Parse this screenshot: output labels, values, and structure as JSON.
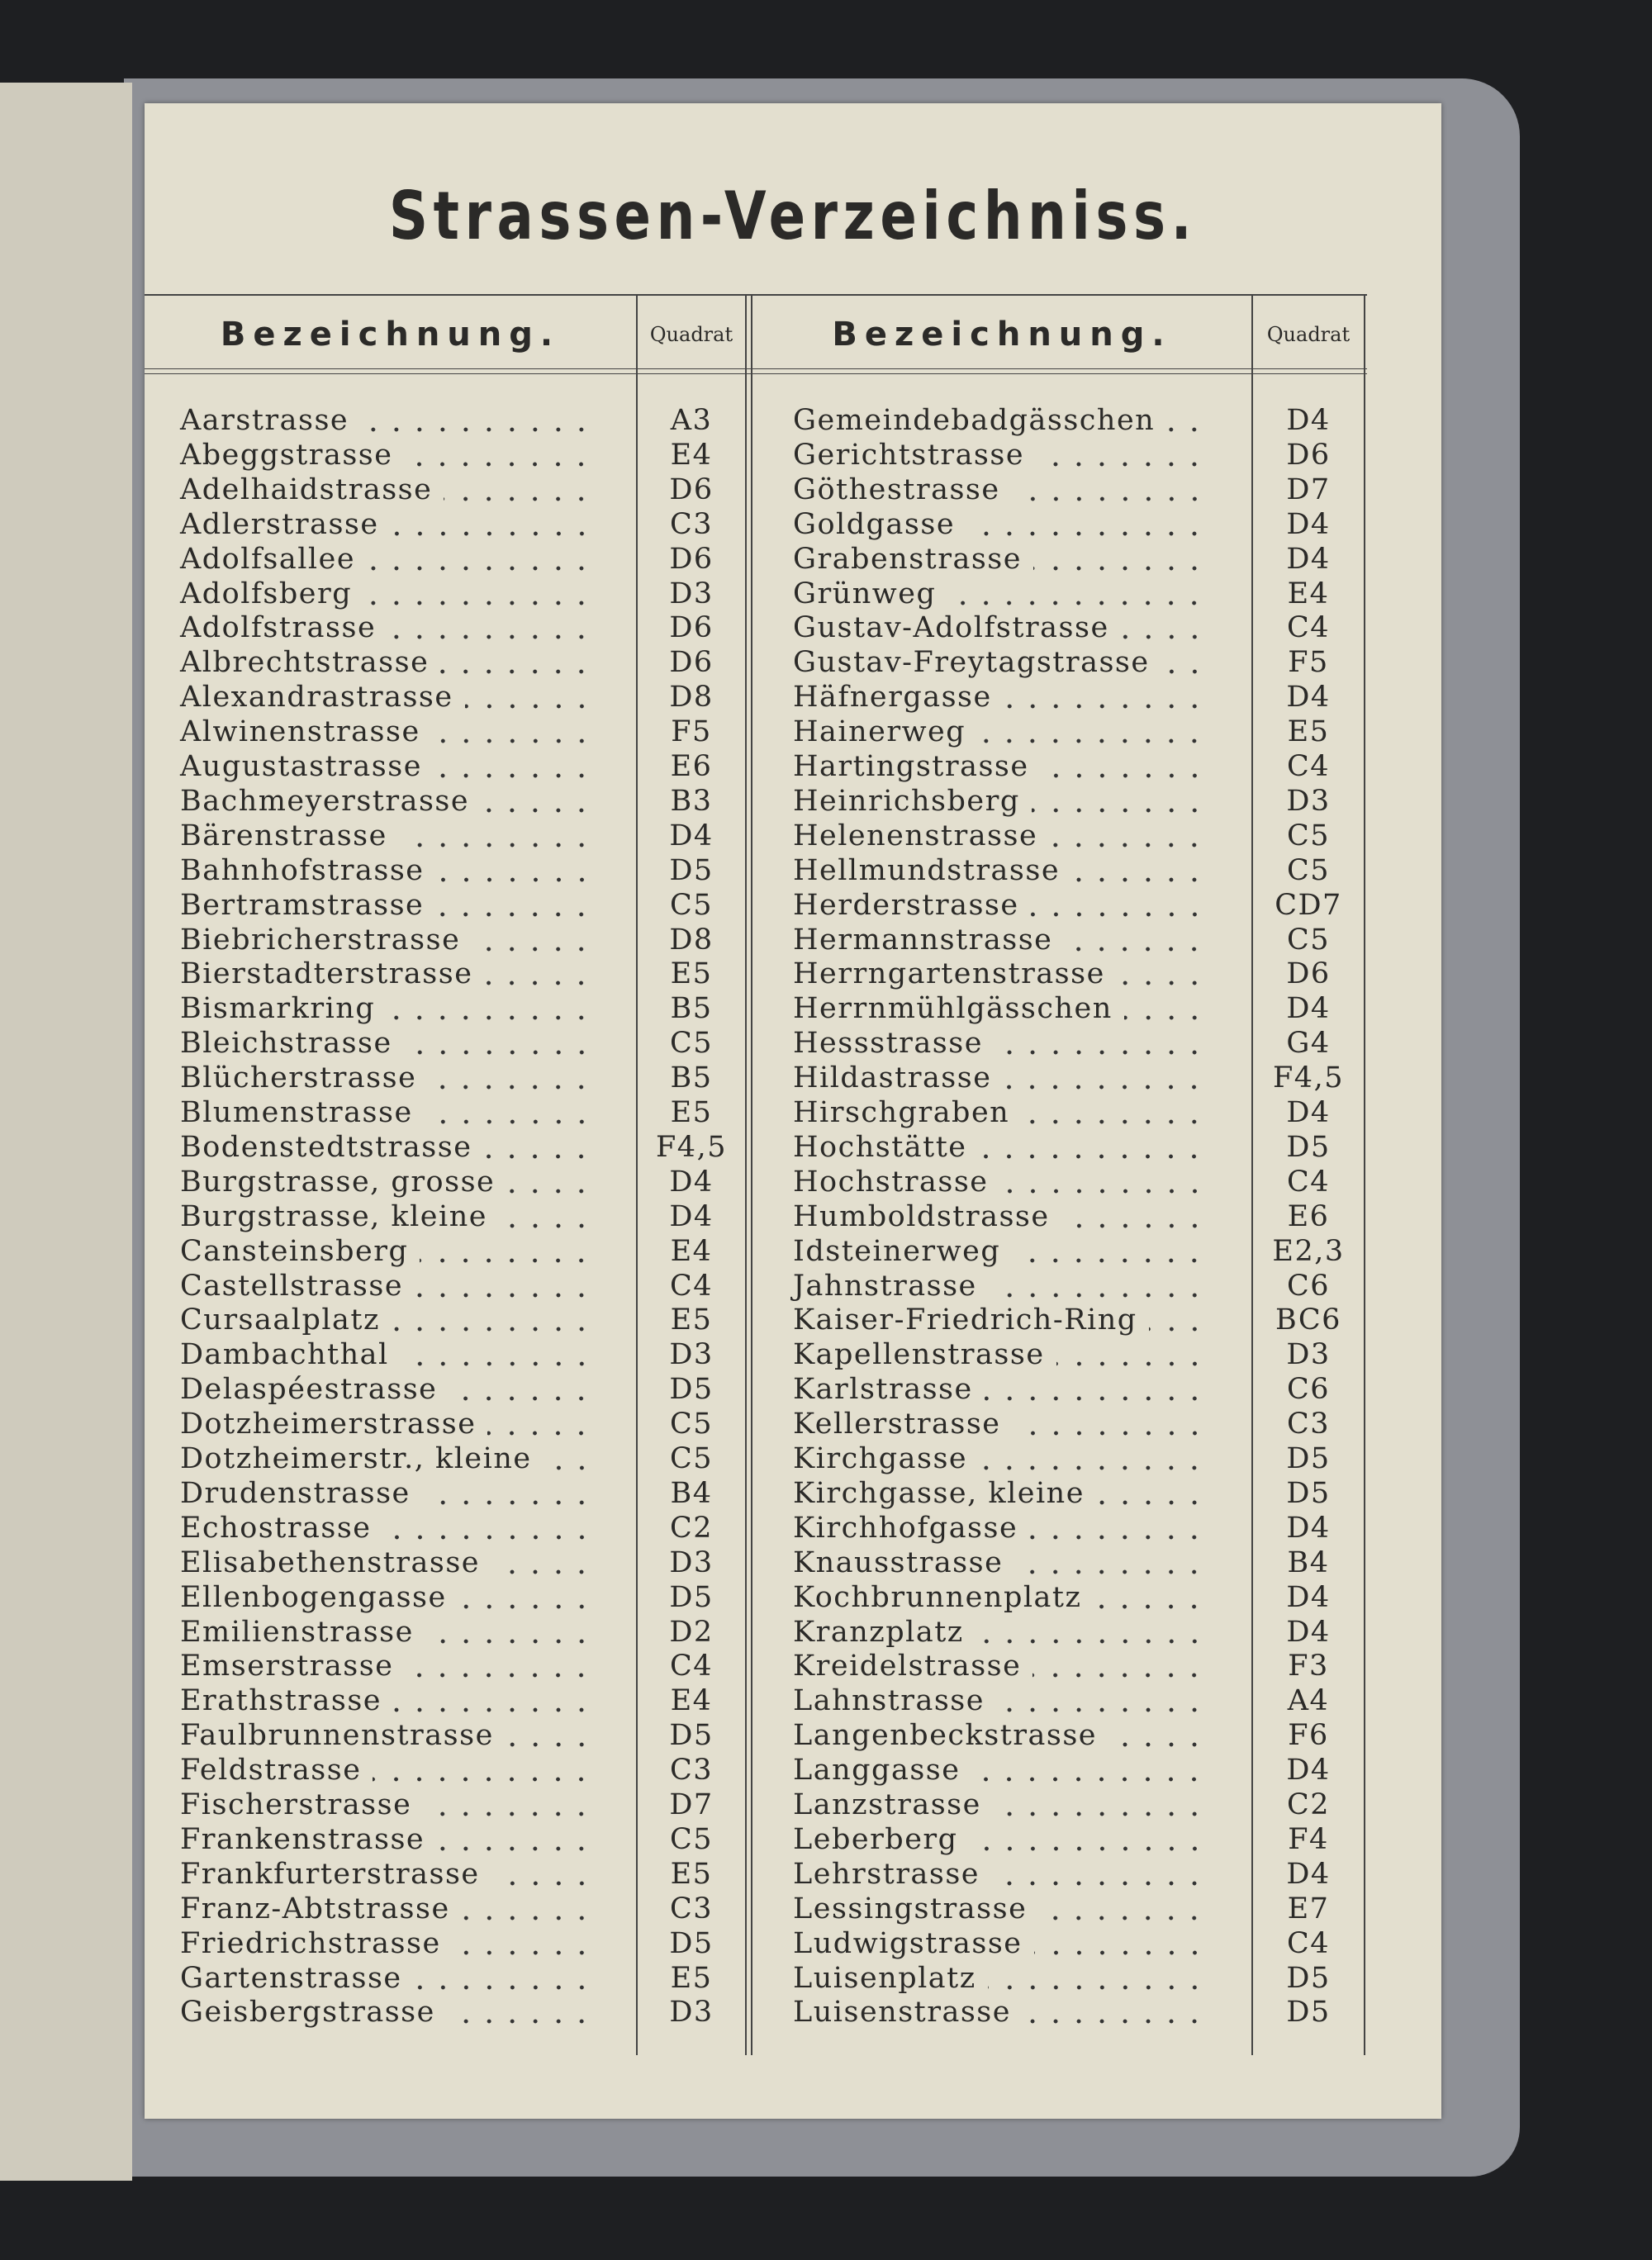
{
  "header": {
    "title": "Strassen-Verzeichniss."
  },
  "table": {
    "columns": [
      "Bezeichnung.",
      "Quadrat",
      "Bezeichnung.",
      "Quadrat"
    ],
    "left": {
      "rows": [
        [
          "Aarstrasse",
          "A3"
        ],
        [
          "Abeggstrasse",
          "E4"
        ],
        [
          "Adelhaidstrasse",
          "D6"
        ],
        [
          "Adlerstrasse",
          "C3"
        ],
        [
          "Adolfsallee",
          "D6"
        ],
        [
          "Adolfsberg",
          "D3"
        ],
        [
          "Adolfstrasse",
          "D6"
        ],
        [
          "Albrechtstrasse",
          "D6"
        ],
        [
          "Alexandrastrasse",
          "D8"
        ],
        [
          "Alwinenstrasse",
          "F5"
        ],
        [
          "Augustastrasse",
          "E6"
        ],
        [
          "Bachmeyerstrasse",
          "B3"
        ],
        [
          "Bärenstrasse",
          "D4"
        ],
        [
          "Bahnhofstrasse",
          "D5"
        ],
        [
          "Bertramstrasse",
          "C5"
        ],
        [
          "Biebricherstrasse",
          "D8"
        ],
        [
          "Bierstadterstrasse",
          "E5"
        ],
        [
          "Bismarkring",
          "B5"
        ],
        [
          "Bleichstrasse",
          "C5"
        ],
        [
          "Blücherstrasse",
          "B5"
        ],
        [
          "Blumenstrasse",
          "E5"
        ],
        [
          "Bodenstedtstrasse",
          "F4,5"
        ],
        [
          "Burgstrasse, grosse",
          "D4"
        ],
        [
          "Burgstrasse, kleine",
          "D4"
        ],
        [
          "Cansteinsberg",
          "E4"
        ],
        [
          "Castellstrasse",
          "C4"
        ],
        [
          "Cursaalplatz",
          "E5"
        ],
        [
          "Dambachthal",
          "D3"
        ],
        [
          "Delaspéestrasse",
          "D5"
        ],
        [
          "Dotzheimerstrasse",
          "C5"
        ],
        [
          "Dotzheimerstr., kleine",
          "C5"
        ],
        [
          "Drudenstrasse",
          "B4"
        ],
        [
          "Echostrasse",
          "C2"
        ],
        [
          "Elisabethenstrasse",
          "D3"
        ],
        [
          "Ellenbogengasse",
          "D5"
        ],
        [
          "Emilienstrasse",
          "D2"
        ],
        [
          "Emserstrasse",
          "C4"
        ],
        [
          "Erathstrasse",
          "E4"
        ],
        [
          "Faulbrunnenstrasse",
          "D5"
        ],
        [
          "Feldstrasse",
          "C3"
        ],
        [
          "Fischerstrasse",
          "D7"
        ],
        [
          "Frankenstrasse",
          "C5"
        ],
        [
          "Frankfurterstrasse",
          "E5"
        ],
        [
          "Franz-Abtstrasse",
          "C3"
        ],
        [
          "Friedrichstrasse",
          "D5"
        ],
        [
          "Gartenstrasse",
          "E5"
        ],
        [
          "Geisbergstrasse",
          "D3"
        ]
      ]
    },
    "right": {
      "rows": [
        [
          "Gemeindebadgässchen",
          "D4"
        ],
        [
          "Gerichtstrasse",
          "D6"
        ],
        [
          "Göthestrasse",
          "D7"
        ],
        [
          "Goldgasse",
          "D4"
        ],
        [
          "Grabenstrasse",
          "D4"
        ],
        [
          "Grünweg",
          "E4"
        ],
        [
          "Gustav-Adolfstrasse",
          "C4"
        ],
        [
          "Gustav-Freytagstrasse",
          "F5"
        ],
        [
          "Häfnergasse",
          "D4"
        ],
        [
          "Hainerweg",
          "E5"
        ],
        [
          "Hartingstrasse",
          "C4"
        ],
        [
          "Heinrichsberg",
          "D3"
        ],
        [
          "Helenenstrasse",
          "C5"
        ],
        [
          "Hellmundstrasse",
          "C5"
        ],
        [
          "Herderstrasse",
          "CD7"
        ],
        [
          "Hermannstrasse",
          "C5"
        ],
        [
          "Herrngartenstrasse",
          "D6"
        ],
        [
          "Herrnmühlgässchen",
          "D4"
        ],
        [
          "Hessstrasse",
          "G4"
        ],
        [
          "Hildastrasse",
          "F4,5"
        ],
        [
          "Hirschgraben",
          "D4"
        ],
        [
          "Hochstätte",
          "D5"
        ],
        [
          "Hochstrasse",
          "C4"
        ],
        [
          "Humboldstrasse",
          "E6"
        ],
        [
          "Idsteinerweg",
          "E2,3"
        ],
        [
          "Jahnstrasse",
          "C6"
        ],
        [
          "Kaiser-Friedrich-Ring",
          "BC6"
        ],
        [
          "Kapellenstrasse",
          "D3"
        ],
        [
          "Karlstrasse",
          "C6"
        ],
        [
          "Kellerstrasse",
          "C3"
        ],
        [
          "Kirchgasse",
          "D5"
        ],
        [
          "Kirchgasse, kleine",
          "D5"
        ],
        [
          "Kirchhofgasse",
          "D4"
        ],
        [
          "Knausstrasse",
          "B4"
        ],
        [
          "Kochbrunnenplatz",
          "D4"
        ],
        [
          "Kranzplatz",
          "D4"
        ],
        [
          "Kreidelstrasse",
          "F3"
        ],
        [
          "Lahnstrasse",
          "A4"
        ],
        [
          "Langenbeckstrasse",
          "F6"
        ],
        [
          "Langgasse",
          "D4"
        ],
        [
          "Lanzstrasse",
          "C2"
        ],
        [
          "Leberberg",
          "F4"
        ],
        [
          "Lehrstrasse",
          "D4"
        ],
        [
          "Lessingstrasse",
          "E7"
        ],
        [
          "Ludwigstrasse",
          "C4"
        ],
        [
          "Luisenplatz",
          "D5"
        ],
        [
          "Luisenstrasse",
          "D5"
        ]
      ]
    }
  }
}
